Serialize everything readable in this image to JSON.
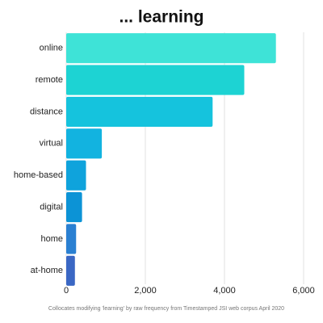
{
  "chart_data": {
    "type": "bar",
    "orientation": "horizontal",
    "title": "... learning",
    "caption": "Collocates modifying 'learning' by raw frequency  from Timestamped JSI web corpus April 2020",
    "categories": [
      "online",
      "remote",
      "distance",
      "virtual",
      "home-based",
      "digital",
      "home",
      "at-home"
    ],
    "values": [
      5300,
      4500,
      3700,
      900,
      500,
      400,
      250,
      220
    ],
    "colors": [
      "#3ee3d7",
      "#1dd3d3",
      "#15c3dd",
      "#12b3e0",
      "#0fa3dc",
      "#0c93d6",
      "#2a80d2",
      "#3a67c4"
    ],
    "xlim": [
      0,
      6000
    ],
    "xticks": [
      0,
      {
        "value": 2000,
        "label": "2,000"
      },
      {
        "value": 4000,
        "label": "4,000"
      },
      {
        "value": 6000,
        "label": "6,000"
      }
    ],
    "grid": true
  }
}
